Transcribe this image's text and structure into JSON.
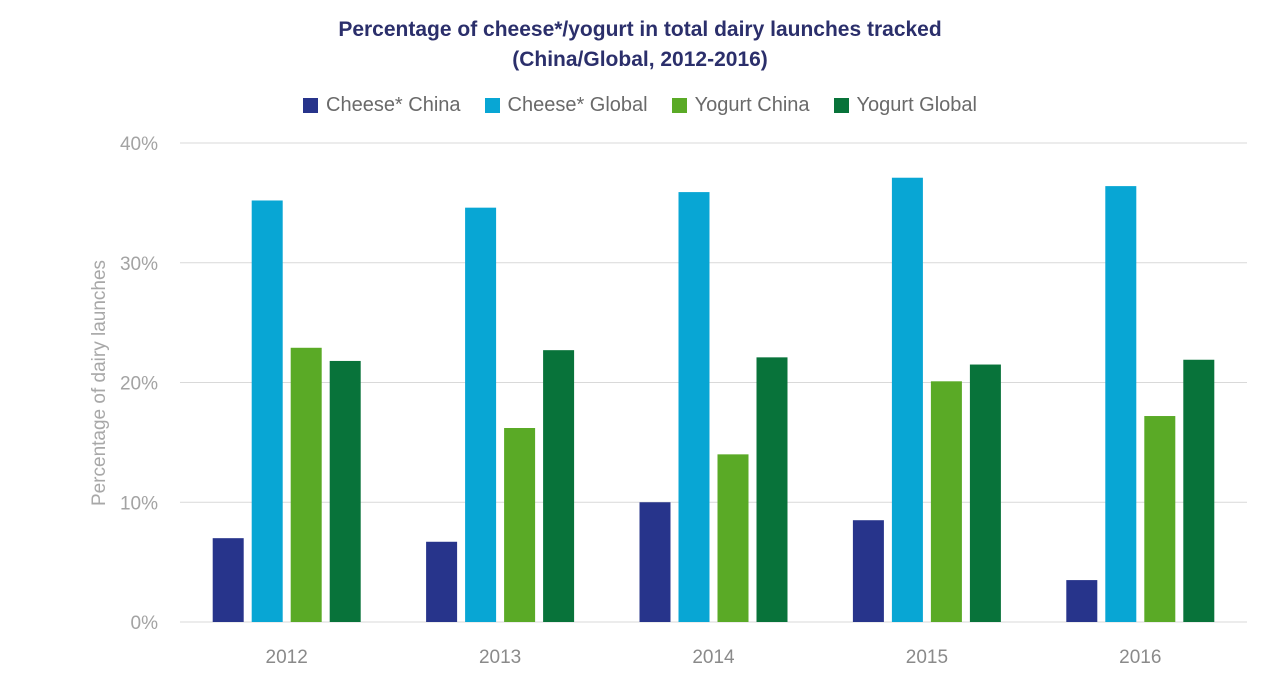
{
  "chart_data": {
    "type": "bar",
    "title": "Percentage of cheese*/yogurt in total dairy launches tracked",
    "subtitle": "(China/Global, 2012-2016)",
    "xlabel": "",
    "ylabel": "Percentage of dairy launches",
    "categories": [
      "2012",
      "2013",
      "2014",
      "2015",
      "2016"
    ],
    "ylim": [
      0,
      40
    ],
    "yticks": [
      "0%",
      "10%",
      "20%",
      "30%",
      "40%"
    ],
    "grid": true,
    "legend_position": "top",
    "series": [
      {
        "name": "Cheese* China",
        "color": "#27348b",
        "values": [
          7.0,
          6.7,
          10.0,
          8.5,
          3.5
        ]
      },
      {
        "name": "Cheese* Global",
        "color": "#08a6d4",
        "values": [
          35.2,
          34.6,
          35.9,
          37.1,
          36.4
        ]
      },
      {
        "name": "Yogurt China",
        "color": "#5aaa26",
        "values": [
          22.9,
          16.2,
          14.0,
          20.1,
          17.2
        ]
      },
      {
        "name": "Yogurt Global",
        "color": "#08733a",
        "values": [
          21.8,
          22.7,
          22.1,
          21.5,
          21.9
        ]
      }
    ]
  }
}
